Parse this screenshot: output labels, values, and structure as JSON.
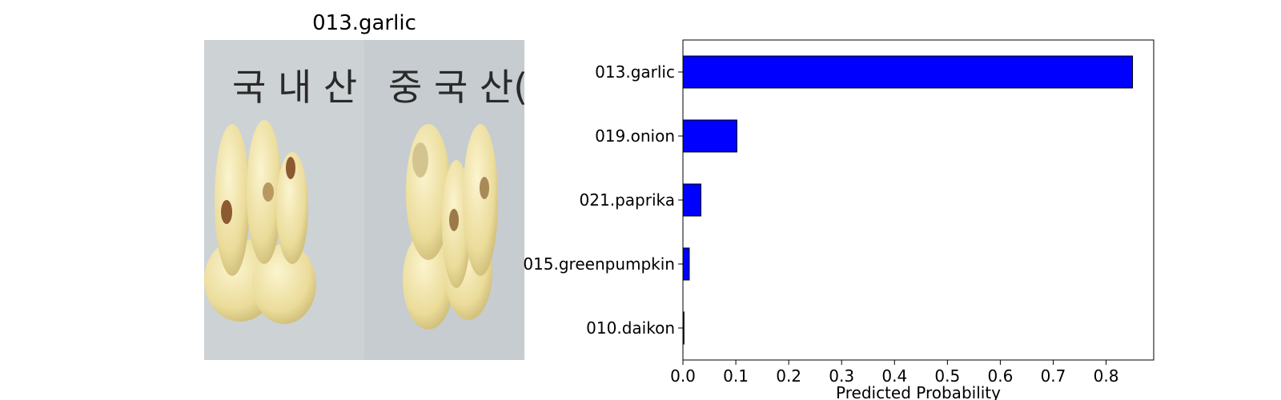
{
  "photo_panel": {
    "title": "013.garlic",
    "photo_text_left": "국 내 산",
    "photo_text_right": "중 국 산(저장"
  },
  "colors": {
    "bar_fill": "#0000ff",
    "bar_edge": "#000000",
    "photo_background": "#c9cfd2",
    "garlic": "#efe3a6"
  },
  "chart_data": {
    "type": "bar",
    "orientation": "horizontal",
    "categories": [
      "013.garlic",
      "019.onion",
      "021.paprika",
      "015.greenpumpkin",
      "010.daikon"
    ],
    "values": [
      0.85,
      0.102,
      0.034,
      0.012,
      0.002
    ],
    "xlabel": "Predicted Probability",
    "xlim": [
      0,
      0.89
    ],
    "xticks": [
      "0.0",
      "0.1",
      "0.2",
      "0.3",
      "0.4",
      "0.5",
      "0.6",
      "0.7",
      "0.8"
    ],
    "grid": false
  }
}
